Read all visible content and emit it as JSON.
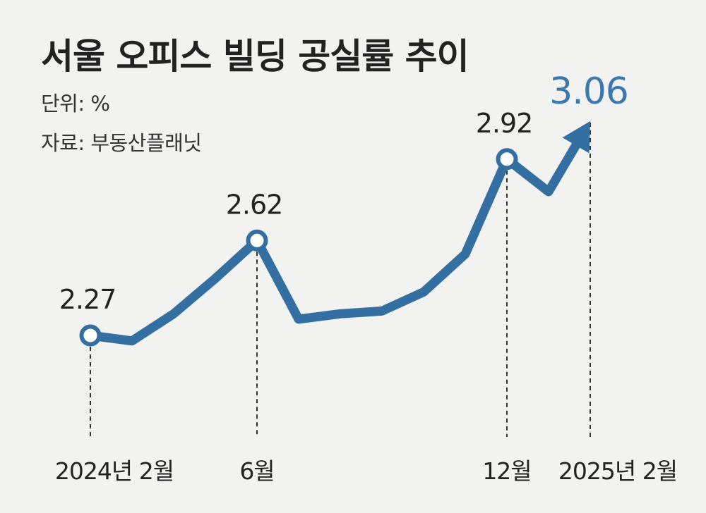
{
  "title": "서울 오피스 빌딩 공실률 추이",
  "unit": "단위: %",
  "source": "자료: 부동산플래닛",
  "colors": {
    "line": "#336fa0",
    "accent": "#3a78ad",
    "text": "#222222",
    "background": "#f2f2f1"
  },
  "chart_data": {
    "type": "line",
    "title": "서울 오피스 빌딩 공실률 추이",
    "ylabel": "%",
    "xlabel": "",
    "x": [
      "2024-02",
      "2024-03",
      "2024-04",
      "2024-05",
      "2024-06",
      "2024-07",
      "2024-08",
      "2024-09",
      "2024-10",
      "2024-11",
      "2024-12",
      "2025-01",
      "2025-02"
    ],
    "values": [
      2.27,
      2.25,
      2.35,
      2.48,
      2.62,
      2.33,
      2.35,
      2.36,
      2.43,
      2.57,
      2.92,
      2.8,
      3.06
    ],
    "ylim": [
      2.0,
      3.2
    ],
    "grid": false,
    "x_tick_labels": [
      {
        "index": 0,
        "label": "2024년 2월"
      },
      {
        "index": 4,
        "label": "6월"
      },
      {
        "index": 10,
        "label": "12월"
      },
      {
        "index": 12,
        "label": "2025년 2월"
      }
    ],
    "data_labels": [
      {
        "index": 0,
        "label": "2.27"
      },
      {
        "index": 4,
        "label": "2.62"
      },
      {
        "index": 10,
        "label": "2.92"
      },
      {
        "index": 12,
        "label": "3.06"
      }
    ],
    "markers_at": [
      0,
      4,
      10
    ],
    "arrow_end": true
  }
}
